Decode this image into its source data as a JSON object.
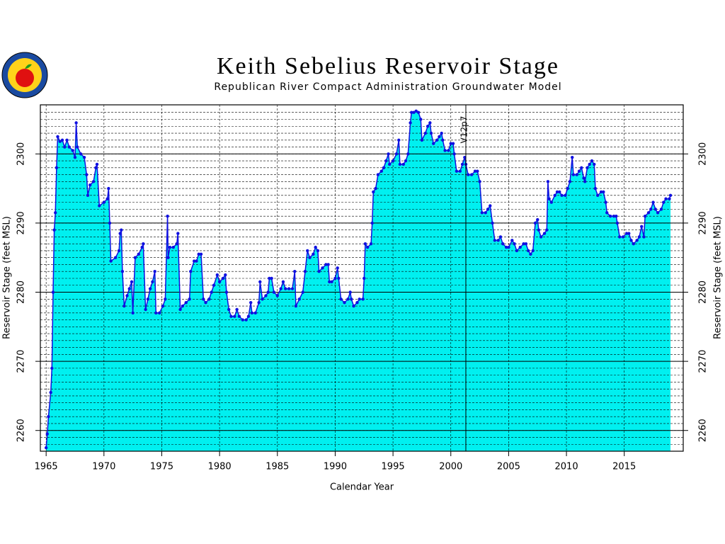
{
  "chart_data": {
    "type": "area",
    "title": "Keith Sebelius Reservoir Stage",
    "subtitle": "Republican River Compact Administration Groundwater Model",
    "x_label": "Calendar Year",
    "y_label": "Reservoir Stage (feet MSL)",
    "y2_label": "Reservoir Stage (feet MSL)",
    "annotation": {
      "text": "V12p7",
      "x": 2001.3
    },
    "xlim": [
      1964.5,
      2020.1
    ],
    "xticks": [
      1965,
      1970,
      1975,
      1980,
      1985,
      1990,
      1995,
      2000,
      2005,
      2010,
      2015
    ],
    "ylim": [
      2257,
      2307.1
    ],
    "yticks": [
      2260,
      2270,
      2280,
      2290,
      2300
    ],
    "y2lim": [
      2257,
      2307.1
    ],
    "y2ticks": [
      2260,
      2270,
      2280,
      2290,
      2300
    ],
    "yminorticks": [
      2258,
      2259,
      2260,
      2261,
      2262,
      2263,
      2264,
      2265,
      2266,
      2267,
      2268,
      2269,
      2270,
      2271,
      2272,
      2273,
      2274,
      2275,
      2276,
      2277,
      2278,
      2279,
      2280,
      2281,
      2282,
      2283,
      2284,
      2285,
      2286,
      2287,
      2288,
      2289,
      2290,
      2291,
      2292,
      2293,
      2294,
      2295,
      2296,
      2297,
      2298,
      2299,
      2300,
      2301,
      2302,
      2303,
      2304,
      2305,
      2306
    ],
    "grid": true,
    "fill_color": "#00f0f0",
    "series": [
      {
        "color": "#1010e0",
        "x": [
          1965.0,
          1965.1,
          1965.2,
          1965.4,
          1965.5,
          1965.6,
          1965.7,
          1965.8,
          1965.9,
          1966.0,
          1966.2,
          1966.4,
          1966.6,
          1966.8,
          1967.0,
          1967.3,
          1967.5,
          1967.6,
          1967.7,
          1968.0,
          1968.3,
          1968.5,
          1968.6,
          1968.8,
          1969.1,
          1969.3,
          1969.4,
          1969.6,
          1970.0,
          1970.3,
          1970.4,
          1970.5,
          1970.6,
          1971.0,
          1971.3,
          1971.4,
          1971.5,
          1971.6,
          1971.75,
          1972.0,
          1972.2,
          1972.4,
          1972.5,
          1972.7,
          1973.0,
          1973.3,
          1973.4,
          1973.6,
          1973.8,
          1974.0,
          1974.2,
          1974.4,
          1974.5,
          1974.8,
          1975.1,
          1975.3,
          1975.5,
          1975.55,
          1975.7,
          1976.0,
          1976.3,
          1976.4,
          1976.6,
          1976.8,
          1977.1,
          1977.4,
          1977.5,
          1977.8,
          1978.0,
          1978.2,
          1978.4,
          1978.6,
          1978.8,
          1979.1,
          1979.3,
          1979.5,
          1979.8,
          1980.0,
          1980.3,
          1980.5,
          1980.6,
          1980.8,
          1981.0,
          1981.3,
          1981.5,
          1981.7,
          1982.0,
          1982.3,
          1982.5,
          1982.7,
          1982.8,
          1983.1,
          1983.4,
          1983.5,
          1983.7,
          1984.0,
          1984.2,
          1984.3,
          1984.5,
          1984.7,
          1985.0,
          1985.3,
          1985.5,
          1985.7,
          1986.0,
          1986.3,
          1986.5,
          1986.6,
          1986.9,
          1987.2,
          1987.4,
          1987.6,
          1987.8,
          1988.1,
          1988.3,
          1988.5,
          1988.6,
          1988.9,
          1989.2,
          1989.4,
          1989.5,
          1989.7,
          1990.0,
          1990.2,
          1990.3,
          1990.5,
          1990.8,
          1991.1,
          1991.3,
          1991.4,
          1991.6,
          1991.9,
          1992.1,
          1992.4,
          1992.5,
          1992.6,
          1992.8,
          1993.1,
          1993.2,
          1993.3,
          1993.5,
          1993.7,
          1994.0,
          1994.2,
          1994.4,
          1994.6,
          1994.7,
          1995.0,
          1995.3,
          1995.5,
          1995.6,
          1995.9,
          1996.1,
          1996.3,
          1996.5,
          1996.6,
          1996.8,
          1997.0,
          1997.2,
          1997.4,
          1997.5,
          1997.8,
          1998.0,
          1998.2,
          1998.3,
          1998.5,
          1998.8,
          1999.0,
          1999.2,
          1999.3,
          1999.5,
          1999.8,
          2000.0,
          2000.2,
          2000.3,
          2000.5,
          2000.8,
          2001.0,
          2001.2,
          2001.3,
          2001.5,
          2001.8,
          2002.1,
          2002.3,
          2002.5,
          2002.7,
          2003.0,
          2003.2,
          2003.4,
          2003.6,
          2003.8,
          2004.1,
          2004.3,
          2004.5,
          2004.8,
          2005.0,
          2005.3,
          2005.5,
          2005.7,
          2006.0,
          2006.3,
          2006.5,
          2006.7,
          2006.9,
          2007.1,
          2007.3,
          2007.5,
          2007.6,
          2007.8,
          2008.1,
          2008.3,
          2008.4,
          2008.5,
          2008.7,
          2009.0,
          2009.2,
          2009.4,
          2009.6,
          2009.9,
          2010.1,
          2010.3,
          2010.5,
          2010.6,
          2010.9,
          2011.1,
          2011.3,
          2011.5,
          2011.6,
          2011.8,
          2012.0,
          2012.2,
          2012.4,
          2012.5,
          2012.7,
          2013.0,
          2013.2,
          2013.4,
          2013.5,
          2013.8,
          2014.1,
          2014.3,
          2014.4,
          2014.6,
          2014.9,
          2015.2,
          2015.4,
          2015.6,
          2015.8,
          2016.1,
          2016.3,
          2016.5,
          2016.7,
          2016.8,
          2017.1,
          2017.3,
          2017.5,
          2017.7,
          2017.9,
          2018.2,
          2018.4,
          2018.6,
          2018.9,
          2019.0
        ],
        "values": [
          2257.5,
          2259.5,
          2262,
          2265.5,
          2269,
          2280,
          2289,
          2291.5,
          2298,
          2302.5,
          2301.8,
          2302,
          2301,
          2302,
          2301,
          2300.5,
          2299.5,
          2304.5,
          2301,
          2300,
          2299.5,
          2297,
          2294,
          2295.5,
          2296,
          2298,
          2298.5,
          2292.5,
          2293,
          2293.5,
          2295,
          2290,
          2284.5,
          2285,
          2286,
          2288.5,
          2289,
          2283,
          2278,
          2279.5,
          2280.5,
          2281.5,
          2277,
          2285,
          2285.5,
          2286.5,
          2287,
          2277.5,
          2279,
          2280.5,
          2281.5,
          2283,
          2277,
          2277,
          2278,
          2279,
          2291,
          2285,
          2286.5,
          2286.5,
          2287,
          2288.5,
          2277.5,
          2278,
          2278.5,
          2279,
          2283,
          2284.5,
          2284.5,
          2285.5,
          2285.5,
          2279,
          2278.5,
          2279,
          2280,
          2281,
          2282.5,
          2281.5,
          2282,
          2282.5,
          2280,
          2277.5,
          2276.5,
          2276.5,
          2277.5,
          2276.5,
          2276,
          2276,
          2276.5,
          2278.5,
          2277,
          2277,
          2278.5,
          2281.5,
          2279,
          2279.5,
          2280,
          2282,
          2282,
          2280,
          2279.5,
          2280.5,
          2281.5,
          2280.5,
          2280.5,
          2280.5,
          2283,
          2278,
          2279,
          2280,
          2283,
          2286,
          2285,
          2285.5,
          2286.5,
          2286,
          2283,
          2283.5,
          2284,
          2284,
          2281.5,
          2281.5,
          2282,
          2283.5,
          2282,
          2279,
          2278.5,
          2279,
          2280,
          2279,
          2278,
          2278.5,
          2279,
          2279,
          2282,
          2287,
          2286.5,
          2287,
          2290,
          2294.5,
          2295,
          2297,
          2297.5,
          2298,
          2299,
          2300,
          2298.5,
          2299,
          2300,
          2302,
          2298.5,
          2298.5,
          2299,
          2300,
          2304.5,
          2306,
          2306,
          2306.2,
          2306,
          2305,
          2302,
          2303,
          2304,
          2304.5,
          2303,
          2301.5,
          2302,
          2302.5,
          2303,
          2302,
          2300.5,
          2300.5,
          2301.5,
          2301.5,
          2300,
          2297.5,
          2297.5,
          2298.5,
          2299.5,
          2298.5,
          2297,
          2297,
          2297.5,
          2297.5,
          2296,
          2291.5,
          2291.5,
          2292,
          2292.5,
          2290,
          2287.5,
          2287.5,
          2288,
          2287,
          2286.5,
          2286.5,
          2287.5,
          2287,
          2286,
          2286.5,
          2287,
          2287,
          2286,
          2285.5,
          2286,
          2290,
          2290.5,
          2289,
          2288,
          2288.5,
          2289,
          2296,
          2293.5,
          2293,
          2294,
          2294.5,
          2294.5,
          2294,
          2294,
          2295,
          2296,
          2299.5,
          2297,
          2297,
          2297.5,
          2298,
          2296.5,
          2296,
          2298,
          2298.5,
          2299,
          2298.5,
          2295,
          2294,
          2294.5,
          2294.5,
          2293,
          2291.5,
          2291,
          2291,
          2291,
          2290,
          2288,
          2288,
          2288.5,
          2288.5,
          2287.5,
          2287,
          2287.5,
          2288,
          2289.5,
          2288,
          2291,
          2291.5,
          2292,
          2293,
          2292,
          2291.5,
          2292,
          2293,
          2293.5,
          2293.5,
          2294
        ]
      }
    ]
  }
}
